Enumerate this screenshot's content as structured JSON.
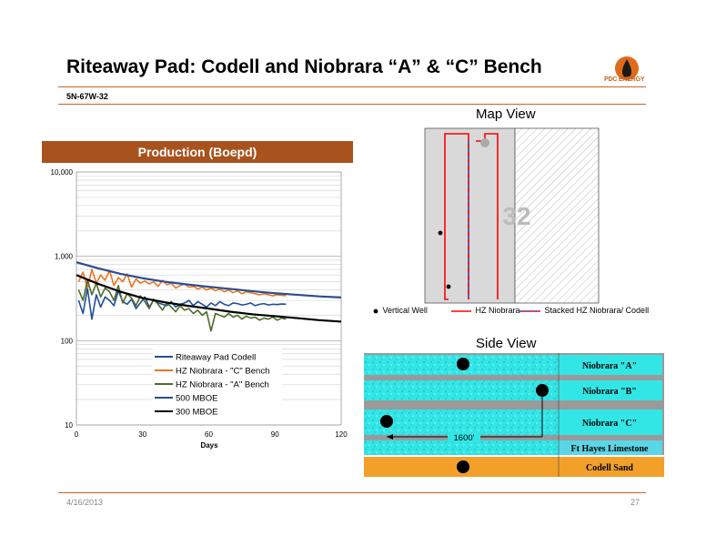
{
  "slide": {
    "title": "Riteaway Pad: Codell and Niobrara “A” & “C” Bench",
    "subtitle": "5N-67W-32",
    "logo_text": "PDC ENERGY",
    "date": "4/16/2013",
    "page": "27"
  },
  "production": {
    "header": "Production (Boepd)"
  },
  "chart_data": {
    "type": "line",
    "title": "Production (Boepd)",
    "xlabel": "Days",
    "ylabel": "",
    "x_ticks": [
      "0",
      "30",
      "60",
      "90",
      "120"
    ],
    "y_ticks": [
      "10",
      "100",
      "1,000",
      "10,000"
    ],
    "xlim": [
      0,
      120
    ],
    "ylim": [
      10,
      10000
    ],
    "y_scale": "log",
    "grid": true,
    "legend_position": "bottom-center",
    "series": [
      {
        "name": "Riteaway Pad Codell",
        "color": "#1f4e9c",
        "x": [
          1,
          3,
          5,
          7,
          9,
          11,
          13,
          15,
          17,
          19,
          21,
          23,
          25,
          27,
          29,
          31,
          33,
          35,
          37,
          39,
          41,
          43,
          45,
          47,
          49,
          51,
          53,
          55,
          57,
          59,
          61,
          63,
          65,
          67,
          69,
          71,
          73,
          75,
          77,
          79,
          81,
          83,
          85,
          87,
          89,
          91,
          93,
          95
        ],
        "values": [
          300,
          210,
          420,
          180,
          350,
          250,
          330,
          300,
          260,
          390,
          290,
          270,
          310,
          240,
          280,
          330,
          250,
          300,
          280,
          270,
          260,
          290,
          250,
          270,
          280,
          300,
          260,
          290,
          270,
          250,
          280,
          260,
          290,
          270,
          260,
          280,
          275,
          265,
          270,
          280,
          260,
          270,
          275,
          265,
          270,
          268,
          272,
          270
        ]
      },
      {
        "name": "HZ Niobrara - \"C\" Bench",
        "color": "#e87722",
        "x": [
          1,
          3,
          5,
          7,
          9,
          11,
          13,
          15,
          17,
          19,
          21,
          23,
          25,
          27,
          29,
          31,
          33,
          35,
          37,
          39,
          41,
          43,
          45,
          47,
          49,
          51,
          53,
          55,
          57,
          59,
          61,
          63,
          65,
          67,
          69,
          71,
          73,
          75,
          77,
          79,
          81,
          83,
          85,
          87,
          89,
          91,
          93,
          95
        ],
        "values": [
          500,
          650,
          420,
          700,
          480,
          600,
          520,
          680,
          450,
          560,
          500,
          620,
          430,
          540,
          480,
          510,
          470,
          500,
          440,
          520,
          460,
          480,
          420,
          450,
          470,
          430,
          440,
          410,
          430,
          400,
          420,
          390,
          410,
          380,
          400,
          370,
          390,
          360,
          380,
          370,
          360,
          350,
          360,
          350,
          340,
          350,
          345,
          340
        ]
      },
      {
        "name": "HZ Niobrara - \"A\" Bench",
        "color": "#4f6b2a",
        "x": [
          1,
          3,
          5,
          7,
          9,
          11,
          13,
          15,
          17,
          19,
          21,
          23,
          25,
          27,
          29,
          31,
          33,
          35,
          37,
          39,
          41,
          43,
          45,
          47,
          49,
          51,
          53,
          55,
          57,
          59,
          61,
          63,
          65,
          67,
          69,
          71,
          73,
          75,
          77,
          79,
          81,
          83,
          85,
          87,
          89,
          91,
          93,
          95
        ],
        "values": [
          400,
          300,
          520,
          350,
          480,
          330,
          420,
          380,
          300,
          450,
          280,
          360,
          320,
          260,
          340,
          290,
          240,
          310,
          270,
          230,
          280,
          250,
          220,
          260,
          230,
          240,
          210,
          230,
          200,
          220,
          130,
          210,
          200,
          190,
          210,
          190,
          200,
          180,
          195,
          185,
          190,
          175,
          185,
          180,
          190,
          175,
          185,
          180
        ]
      },
      {
        "name": "500 MBOE",
        "color": "#2a4d8f",
        "x": [
          0,
          10,
          20,
          30,
          40,
          50,
          60,
          70,
          80,
          90,
          100,
          110,
          120
        ],
        "values": [
          850,
          720,
          620,
          550,
          500,
          465,
          435,
          410,
          385,
          365,
          350,
          335,
          325
        ]
      },
      {
        "name": "300 MBOE",
        "color": "#000000",
        "x": [
          0,
          10,
          20,
          30,
          40,
          50,
          60,
          70,
          80,
          90,
          100,
          110,
          120
        ],
        "values": [
          600,
          470,
          380,
          320,
          285,
          260,
          240,
          220,
          205,
          195,
          185,
          175,
          168
        ]
      }
    ]
  },
  "map_view": {
    "title": "Map View",
    "section_label": "32",
    "legend": {
      "vertical_well": "Vertical Well",
      "hz_niobrara": "HZ Niobrara",
      "stacked": "Stacked HZ Niobrara/ Codell"
    }
  },
  "side_view": {
    "title": "Side View",
    "spacing_label": "1600'",
    "layers": [
      {
        "label": "Niobrara \"A\"",
        "color": "#33e6e6"
      },
      {
        "label": "Niobrara \"B\"",
        "color": "#33e6e6"
      },
      {
        "label": "Niobrara \"C\"",
        "color": "#33e6e6"
      },
      {
        "label": "Ft Hayes Limestone",
        "color": "#5ad6e6"
      },
      {
        "label": "Codell Sand",
        "color": "#f2a02a"
      }
    ]
  },
  "colors": {
    "accent": "#c8641e",
    "header_bg": "#a8521e",
    "hz_red": "#ff0000",
    "stacked_blue": "#3a66c4"
  }
}
